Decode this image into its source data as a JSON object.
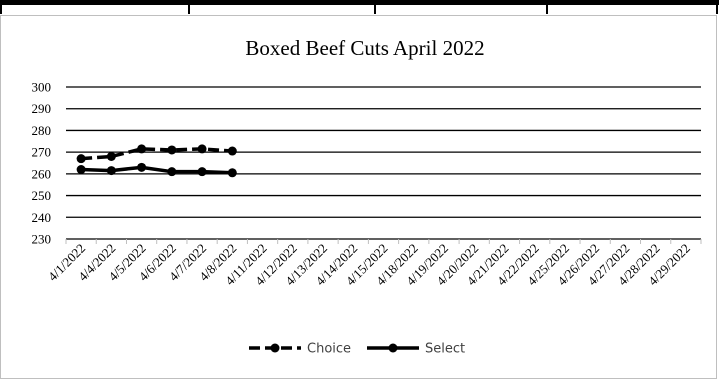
{
  "chart_data": {
    "type": "line",
    "title": "Boxed Beef Cuts April 2022",
    "xlabel": "",
    "ylabel": "",
    "ylim": [
      230,
      300
    ],
    "yticks": [
      "230",
      "240",
      "250",
      "260",
      "270",
      "280",
      "290",
      "300"
    ],
    "categories": [
      "4/1/2022",
      "4/4/2022",
      "4/5/2022",
      "4/6/2022",
      "4/7/2022",
      "4/8/2022",
      "4/11/2022",
      "4/12/2022",
      "4/13/2022",
      "4/14/2022",
      "4/15/2022",
      "4/18/2022",
      "4/19/2022",
      "4/20/2022",
      "4/21/2022",
      "4/22/2022",
      "4/25/2022",
      "4/26/2022",
      "4/27/2022",
      "4/28/2022",
      "4/29/2022"
    ],
    "series": [
      {
        "name": "Choice",
        "color": "#000000",
        "dash": "dashed",
        "values": [
          267,
          268,
          271.5,
          271,
          271.5,
          270.5,
          null,
          null,
          null,
          null,
          null,
          null,
          null,
          null,
          null,
          null,
          null,
          null,
          null,
          null,
          null
        ]
      },
      {
        "name": "Select",
        "color": "#000000",
        "dash": "solid",
        "values": [
          262,
          261.5,
          263,
          261,
          261,
          260.5,
          null,
          null,
          null,
          null,
          null,
          null,
          null,
          null,
          null,
          null,
          null,
          null,
          null,
          null,
          null
        ]
      }
    ],
    "grid": true,
    "legend_position": "bottom"
  }
}
